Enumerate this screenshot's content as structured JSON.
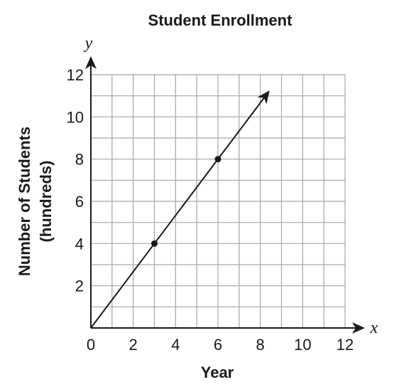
{
  "chart_data": {
    "type": "line",
    "title": "Student Enrollment",
    "xlabel": "Year",
    "ylabel_line1": "Number of Students",
    "ylabel_line2": "(hundreds)",
    "x_var": "x",
    "y_var": "y",
    "xlim": [
      0,
      12
    ],
    "ylim": [
      0,
      12
    ],
    "grid": true,
    "grid_step": 1,
    "x_ticks": [
      0,
      2,
      4,
      6,
      8,
      10,
      12
    ],
    "y_ticks": [
      2,
      4,
      6,
      8,
      10,
      12
    ],
    "series": [
      {
        "line_x": [
          0,
          8.4
        ],
        "line_y": [
          0,
          11.2
        ],
        "arrow_end": true,
        "points": [
          {
            "x": 3,
            "y": 4
          },
          {
            "x": 6,
            "y": 8
          }
        ]
      }
    ]
  }
}
